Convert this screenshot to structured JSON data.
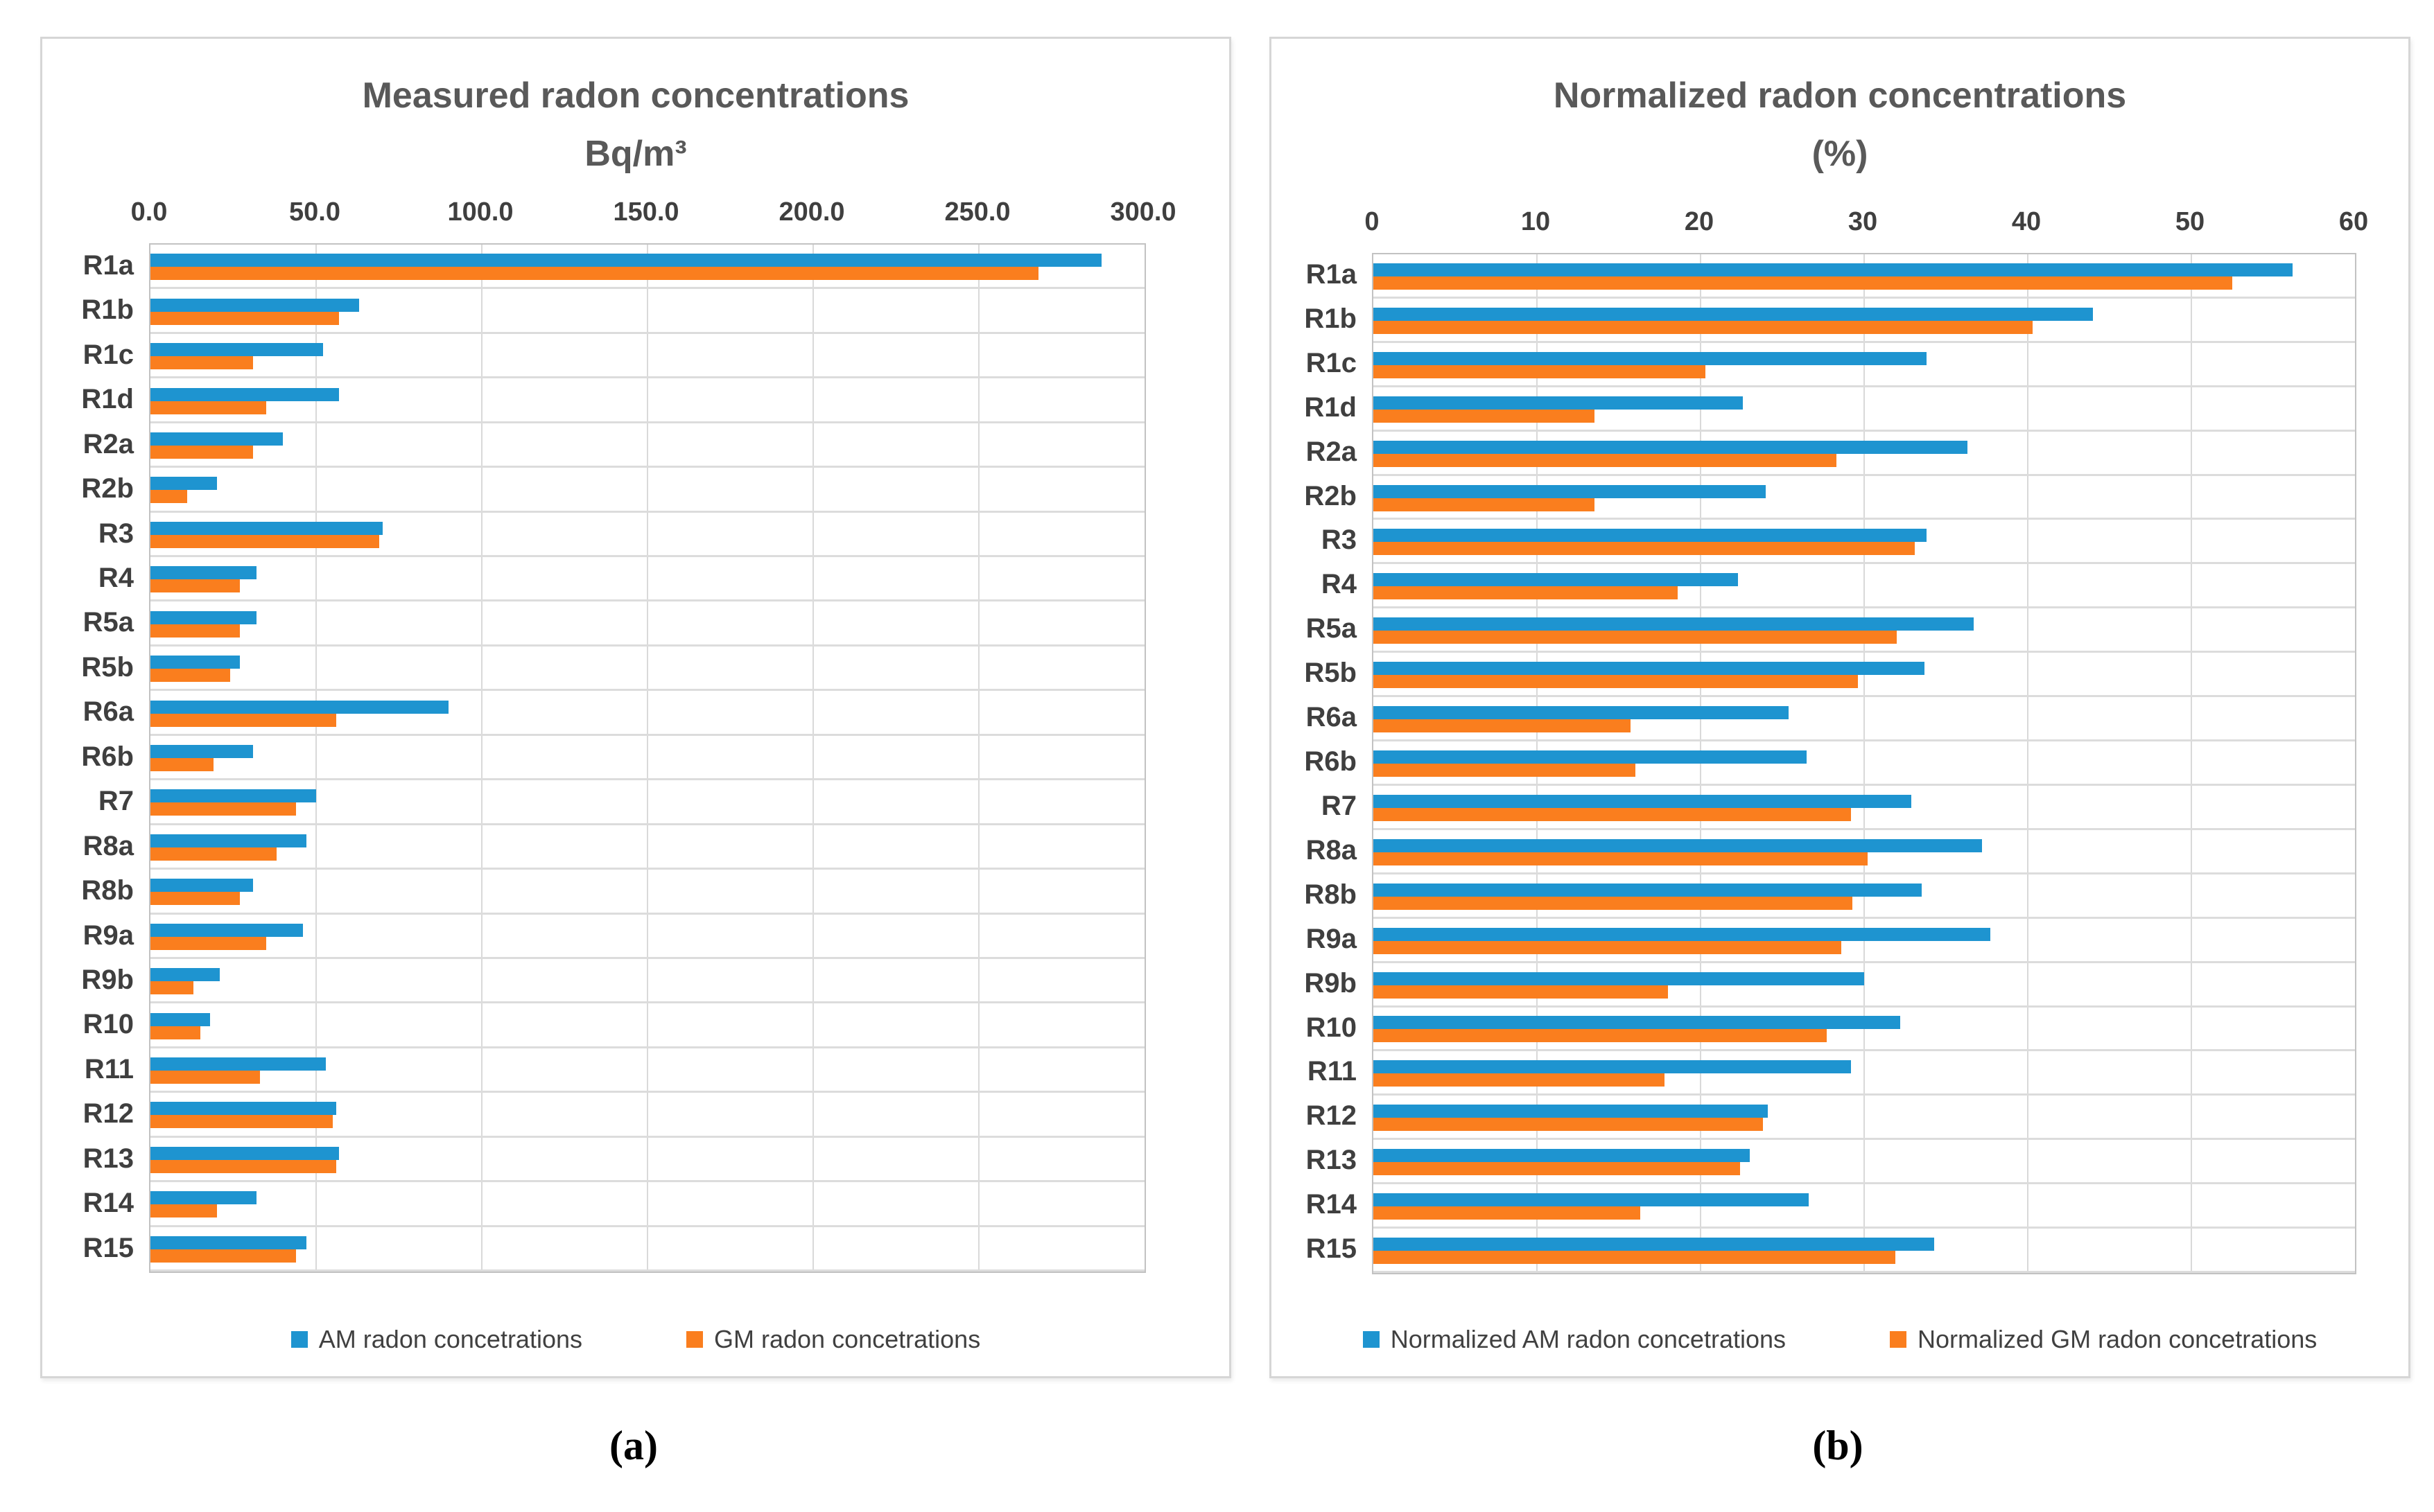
{
  "figure": {
    "caption_a": "(a)",
    "caption_b": "(b)"
  },
  "chart_data": [
    {
      "type": "bar",
      "orientation": "horizontal",
      "title": "Measured radon concentrations",
      "subtitle": "Bq/m³",
      "xlabel": "",
      "ylabel": "",
      "xlim": [
        0,
        300
      ],
      "grid": true,
      "legend_position": "bottom",
      "xticks": [
        {
          "value": 0,
          "label": "0.0"
        },
        {
          "value": 50,
          "label": "50.0"
        },
        {
          "value": 100,
          "label": "100.0"
        },
        {
          "value": 150,
          "label": "150.0"
        },
        {
          "value": 200,
          "label": "200.0"
        },
        {
          "value": 250,
          "label": "250.0"
        },
        {
          "value": 300,
          "label": "300.0"
        }
      ],
      "categories": [
        "R1a",
        "R1b",
        "R1c",
        "R1d",
        "R2a",
        "R2b",
        "R3",
        "R4",
        "R5a",
        "R5b",
        "R6a",
        "R6b",
        "R7",
        "R8a",
        "R8b",
        "R9a",
        "R9b",
        "R10",
        "R11",
        "R12",
        "R13",
        "R14",
        "R15"
      ],
      "series": [
        {
          "name": "AM radon concetrations",
          "color": "#1e94d0",
          "values": [
            287,
            63,
            52,
            57,
            40,
            20,
            70,
            32,
            32,
            27,
            90,
            31,
            50,
            47,
            31,
            46,
            21,
            18,
            53,
            56,
            57,
            32,
            47
          ]
        },
        {
          "name": "GM radon concetrations",
          "color": "#fa7e1e",
          "values": [
            268,
            57,
            31,
            35,
            31,
            11,
            69,
            27,
            27,
            24,
            56,
            19,
            44,
            38,
            27,
            35,
            13,
            15,
            33,
            55,
            56,
            20,
            44
          ]
        }
      ]
    },
    {
      "type": "bar",
      "orientation": "horizontal",
      "title": "Normalized radon concentrations",
      "subtitle": "(%)",
      "xlabel": "",
      "ylabel": "",
      "xlim": [
        0,
        60
      ],
      "grid": true,
      "legend_position": "bottom",
      "xticks": [
        {
          "value": 0,
          "label": "0"
        },
        {
          "value": 10,
          "label": "10"
        },
        {
          "value": 20,
          "label": "20"
        },
        {
          "value": 30,
          "label": "30"
        },
        {
          "value": 40,
          "label": "40"
        },
        {
          "value": 50,
          "label": "50"
        },
        {
          "value": 60,
          "label": "60"
        }
      ],
      "categories": [
        "R1a",
        "R1b",
        "R1c",
        "R1d",
        "R2a",
        "R2b",
        "R3",
        "R4",
        "R5a",
        "R5b",
        "R6a",
        "R6b",
        "R7",
        "R8a",
        "R8b",
        "R9a",
        "R9b",
        "R10",
        "R11",
        "R12",
        "R13",
        "R14",
        "R15"
      ],
      "series": [
        {
          "name": "Normalized AM radon concetrations",
          "color": "#1e94d0",
          "values": [
            56.2,
            44.0,
            33.8,
            22.6,
            36.3,
            24.0,
            33.8,
            22.3,
            36.7,
            33.7,
            25.4,
            26.5,
            32.9,
            37.2,
            33.5,
            37.7,
            30.0,
            32.2,
            29.2,
            24.1,
            23.0,
            26.6,
            34.3
          ]
        },
        {
          "name": "Normalized GM radon concetrations",
          "color": "#fa7e1e",
          "values": [
            52.5,
            40.3,
            20.3,
            13.5,
            28.3,
            13.5,
            33.1,
            18.6,
            32.0,
            29.6,
            15.7,
            16.0,
            29.2,
            30.2,
            29.3,
            28.6,
            18.0,
            27.7,
            17.8,
            23.8,
            22.4,
            16.3,
            31.9
          ]
        }
      ]
    }
  ]
}
